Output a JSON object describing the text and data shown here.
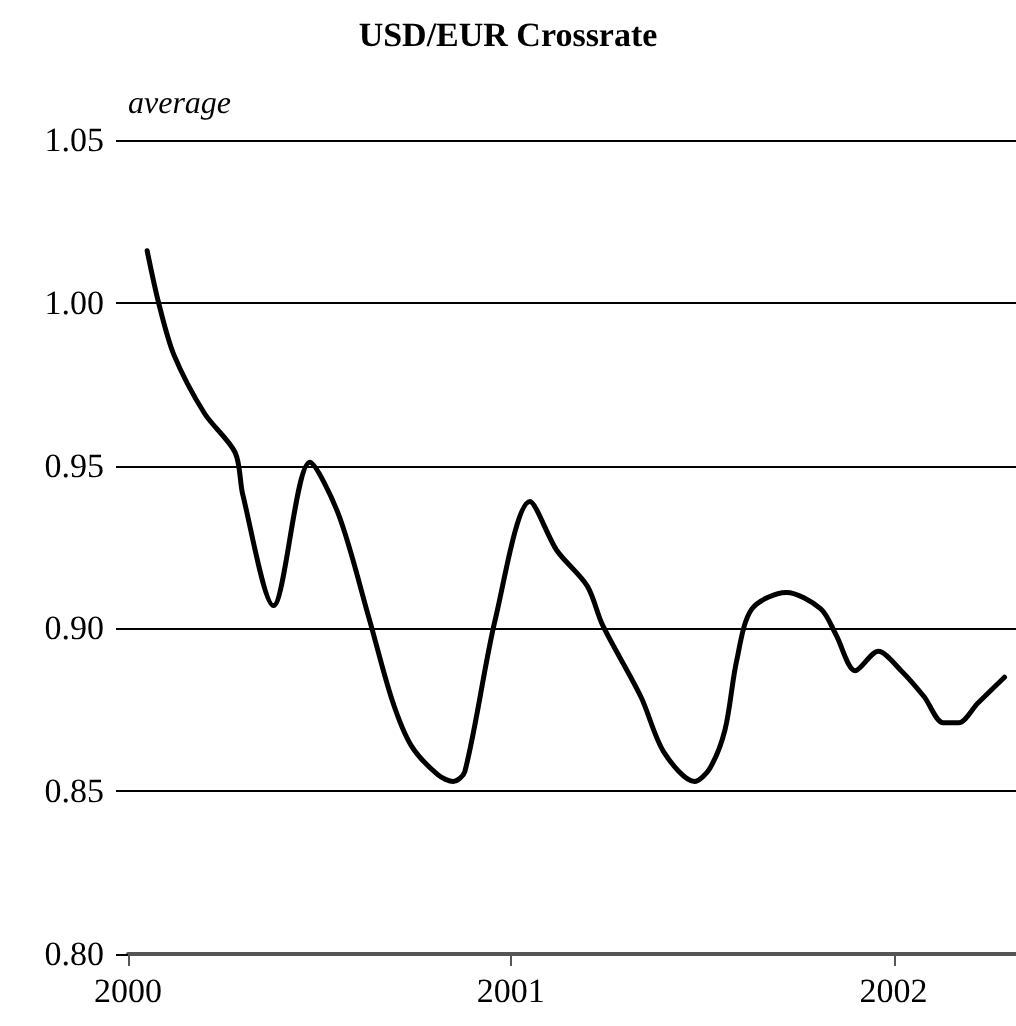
{
  "chart_data": {
    "type": "line",
    "title": "USD/EUR Crossrate",
    "ylabel": "average",
    "x": [
      2000.05,
      2000.08,
      2000.12,
      2000.2,
      2000.28,
      2000.3,
      2000.38,
      2000.475,
      2000.55,
      2000.63,
      2000.69,
      2000.74,
      2000.81,
      2000.85,
      2000.88,
      2000.96,
      2001.05,
      2001.12,
      2001.2,
      2001.24,
      2001.34,
      2001.4,
      2001.48,
      2001.52,
      2001.56,
      2001.59,
      2001.63,
      2001.72,
      2001.81,
      2001.85,
      2001.9,
      2001.96,
      2002.02,
      2002.08,
      2002.13,
      2002.17,
      2002.22,
      2002.29
    ],
    "series": [
      {
        "color": "#000000",
        "values": [
          1.016,
          1.0,
          0.984,
          0.966,
          0.954,
          0.941,
          0.907,
          0.951,
          0.935,
          0.903,
          0.878,
          0.864,
          0.855,
          0.853,
          0.856,
          0.903,
          0.939,
          0.924,
          0.913,
          0.901,
          0.879,
          0.862,
          0.853,
          0.857,
          0.869,
          0.89,
          0.906,
          0.911,
          0.906,
          0.898,
          0.887,
          0.893,
          0.887,
          0.879,
          0.871,
          0.871,
          0.877,
          0.885
        ]
      }
    ],
    "xlim": [
      2000,
      2002.32
    ],
    "xticks": [
      2000,
      2001,
      2002
    ],
    "ylim": [
      0.8,
      1.05
    ],
    "yticks": [
      {
        "value": 0.8,
        "label": "0.80"
      },
      {
        "value": 0.85,
        "label": "0.85"
      },
      {
        "value": 0.9,
        "label": "0.90"
      },
      {
        "value": 0.95,
        "label": "0.95"
      },
      {
        "value": 1.0,
        "label": "1.00"
      },
      {
        "value": 1.05,
        "label": "1.05"
      }
    ],
    "grid": "y",
    "marker": "none",
    "line_style": "solid"
  }
}
